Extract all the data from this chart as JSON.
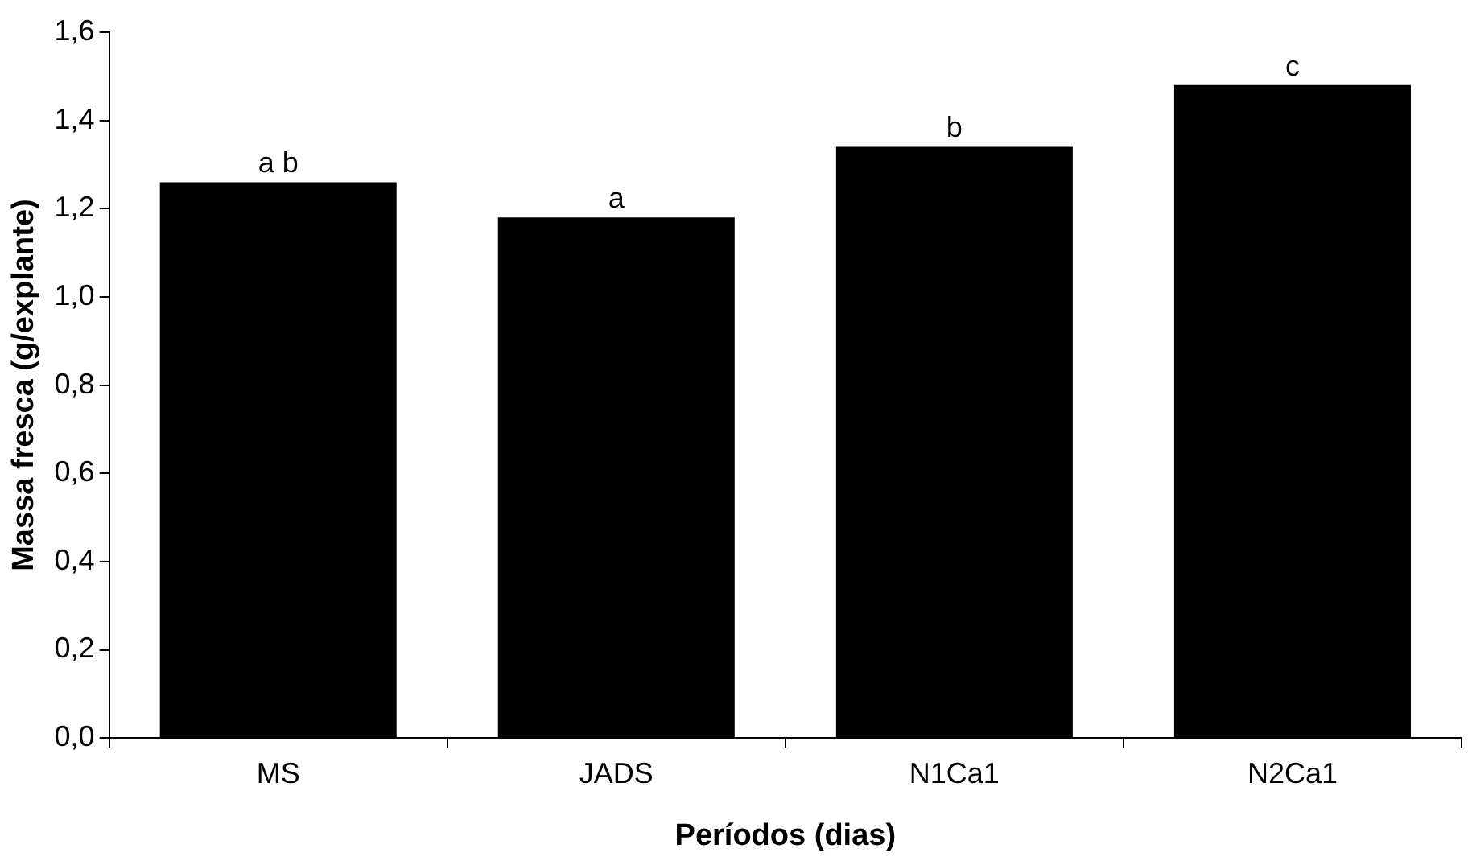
{
  "chart_data": {
    "type": "bar",
    "xlabel": "Períodos (dias)",
    "ylabel": "Massa fresca (g/explante)",
    "categories": [
      "MS",
      "JADS",
      "N1Ca1",
      "N2Ca1"
    ],
    "values": [
      1.26,
      1.18,
      1.34,
      1.48
    ],
    "color": "#000000",
    "ylim": [
      0,
      1.6
    ],
    "yticks": [
      {
        "value": 0,
        "label": "0,0"
      },
      {
        "value": 0.2,
        "label": "0,2"
      },
      {
        "value": 0.4,
        "label": "0,4"
      },
      {
        "value": 0.6,
        "label": "0,6"
      },
      {
        "value": 0.8,
        "label": "0,8"
      },
      {
        "value": 1.0,
        "label": "1,0"
      },
      {
        "value": 1.2,
        "label": "1,2"
      },
      {
        "value": 1.4,
        "label": "1,4"
      },
      {
        "value": 1.6,
        "label": "1,6"
      }
    ],
    "annotations": [
      {
        "text": "a b",
        "x": "MS",
        "y": 1.26
      },
      {
        "text": "a",
        "x": "JADS",
        "y": 1.18
      },
      {
        "text": "b",
        "x": "N1Ca1",
        "y": 1.34
      },
      {
        "text": "c",
        "x": "N2Ca1",
        "y": 1.48
      }
    ],
    "legend": false
  }
}
